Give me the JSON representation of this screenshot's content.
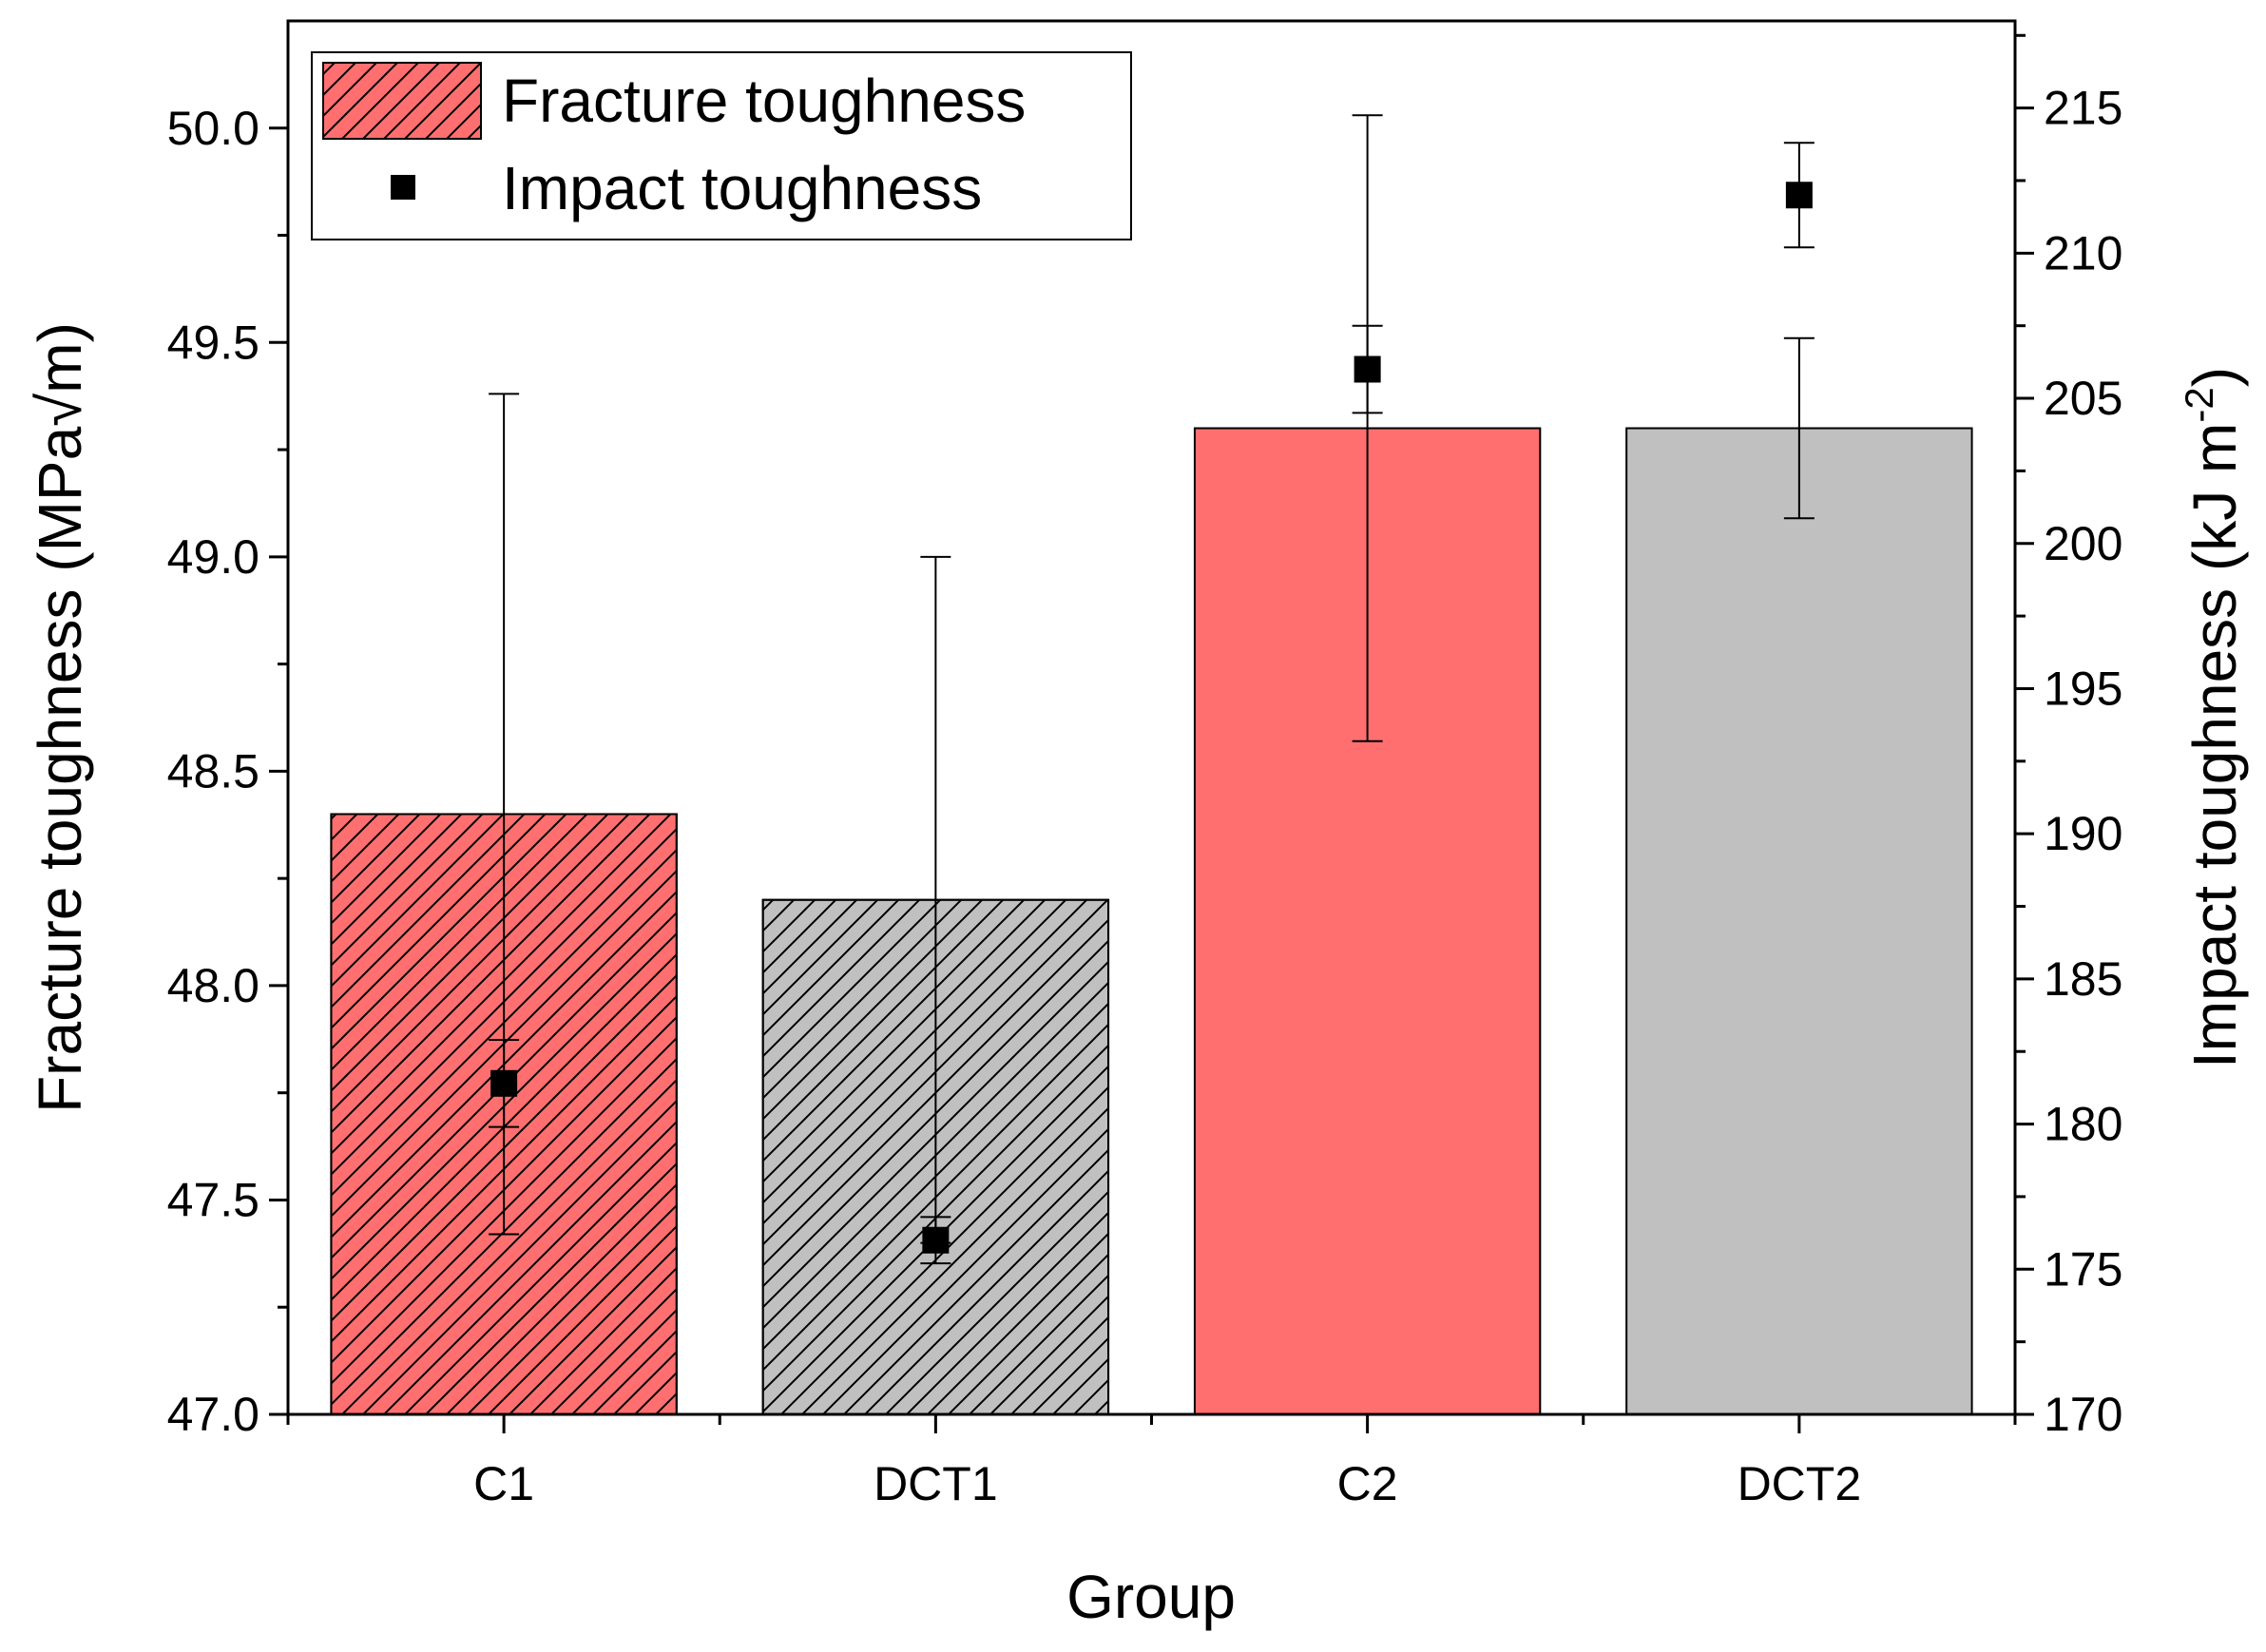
{
  "chart_data": {
    "type": "bar",
    "categories": [
      "C1",
      "DCT1",
      "C2",
      "DCT2"
    ],
    "xlabel": "Group",
    "ylabel": "Fracture toughness (MPa√m)",
    "y2label": "Impact toughness (kJ m",
    "y2label_sup": "-2",
    "ylim": [
      47.0,
      50.25
    ],
    "y2lim": [
      170,
      218
    ],
    "yticks": [
      "47.0",
      "47.5",
      "48.0",
      "48.5",
      "49.0",
      "49.5",
      "50.0"
    ],
    "y2ticks": [
      "170",
      "175",
      "180",
      "185",
      "190",
      "195",
      "200",
      "205",
      "210",
      "215"
    ],
    "series": [
      {
        "name": "Fracture toughness",
        "kind": "bar",
        "axis": "left",
        "values": [
          48.4,
          48.2,
          49.3,
          49.3
        ],
        "error": [
          0.98,
          0.8,
          0.73,
          0.21
        ],
        "colors": [
          "#ff6f6f",
          "#c0c0c0",
          "#ff6f6f",
          "#c0c0c0"
        ],
        "hatched": [
          true,
          true,
          false,
          false
        ]
      },
      {
        "name": "Impact toughness",
        "kind": "scatter",
        "axis": "right",
        "values": [
          181.4,
          176.0,
          206.0,
          212.0
        ],
        "error": [
          1.5,
          0.8,
          1.5,
          1.8
        ],
        "color": "#000000"
      }
    ],
    "legend_position": "top-left",
    "grid": false
  }
}
